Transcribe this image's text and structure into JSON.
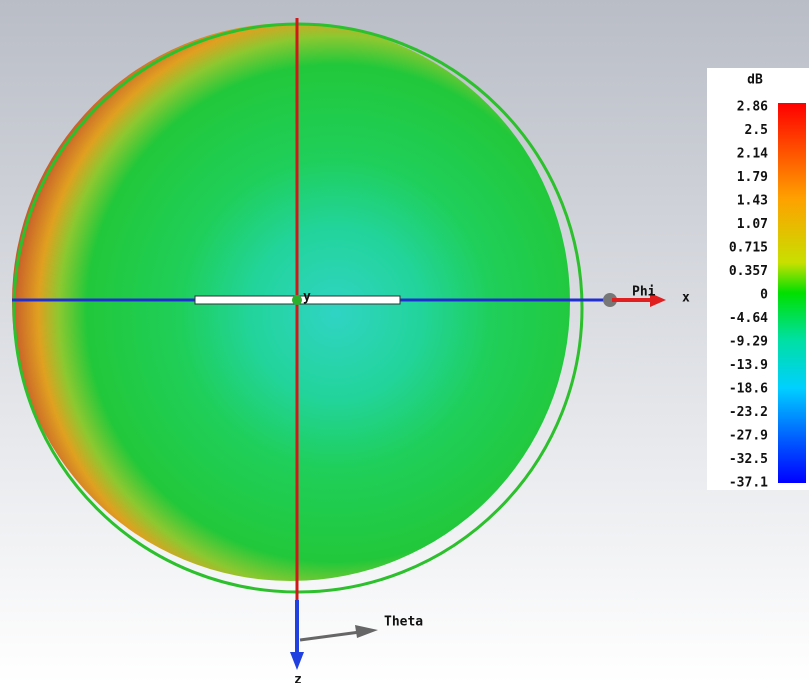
{
  "colorbar": {
    "unit": "dB",
    "labels": [
      "2.86",
      "2.5",
      "2.14",
      "1.79",
      "1.43",
      "1.07",
      "0.715",
      "0.357",
      "0",
      "-4.64",
      "-9.29",
      "-13.9",
      "-18.6",
      "-23.2",
      "-27.9",
      "-32.5",
      "-37.1"
    ]
  },
  "axes": {
    "phi": "Phi",
    "x": "x",
    "y": "y",
    "theta": "Theta",
    "z": "z"
  }
}
